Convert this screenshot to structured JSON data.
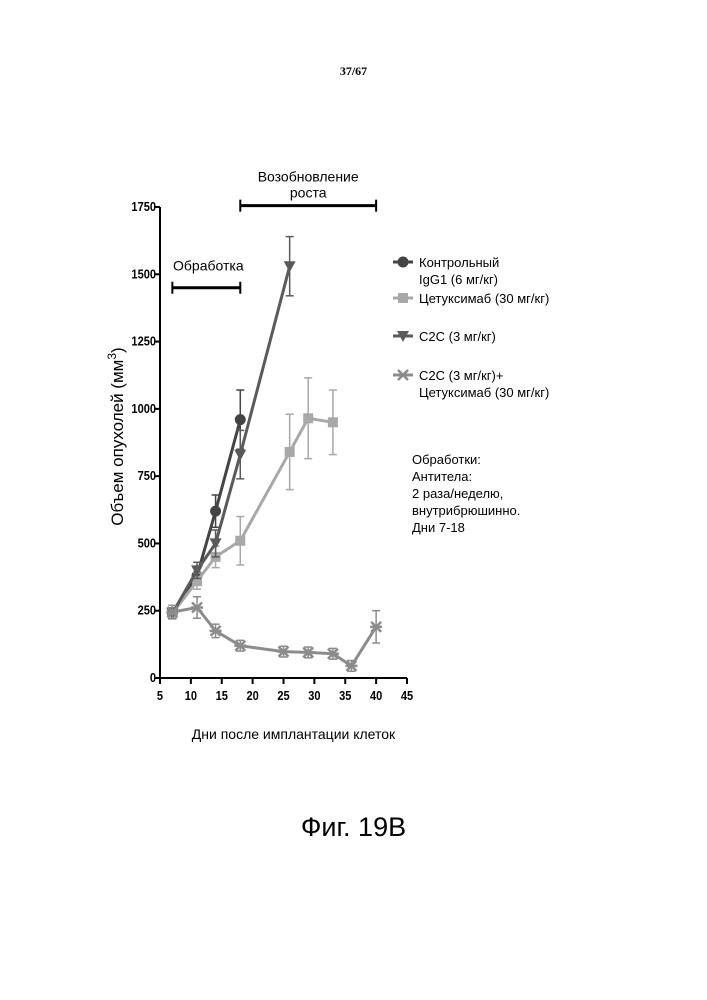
{
  "page": {
    "number": "37/67",
    "caption": "Фиг. 19B"
  },
  "chart_data": {
    "type": "line",
    "xlabel": "Дни после имплантации клеток",
    "ylabel": "Объем опухолей (мм",
    "ylabel_superscript": "3",
    "ylabel_close": ")",
    "xlim": [
      5,
      45
    ],
    "ylim": [
      0,
      1750
    ],
    "xticks": [
      5,
      10,
      15,
      20,
      25,
      30,
      35,
      40,
      45
    ],
    "yticks": [
      0,
      250,
      500,
      750,
      1000,
      1250,
      1500,
      1750
    ],
    "grid": false,
    "legend_position": "right",
    "annotations": {
      "treatment": {
        "label": "Обработка",
        "x_start": 7,
        "x_end": 18,
        "y": 1450
      },
      "regrowth": {
        "label_line1": "Возобновление",
        "label_line2": "роста",
        "x_start": 18,
        "x_end": 40,
        "y": 1755
      },
      "notes": [
        "Обработки:",
        "Антитела:",
        "2 раза/неделю,",
        "внутрибрюшинно.",
        "Дни 7-18"
      ]
    },
    "series": [
      {
        "name_lines": [
          "Контрольный",
          "IgG1 (6 мг/кг)"
        ],
        "color": "#444444",
        "marker": "circle",
        "x": [
          7,
          11,
          14,
          18
        ],
        "y": [
          240,
          380,
          620,
          960
        ],
        "err": [
          20,
          30,
          60,
          110
        ]
      },
      {
        "name_lines": [
          "Цетуксимаб (30 мг/кг)"
        ],
        "color": "#a8a8a8",
        "marker": "square",
        "x": [
          7,
          11,
          14,
          18,
          26,
          29,
          33
        ],
        "y": [
          240,
          360,
          450,
          510,
          840,
          965,
          950
        ],
        "err": [
          20,
          30,
          40,
          90,
          140,
          150,
          120
        ]
      },
      {
        "name_lines": [
          "C2C (3 мг/кг)"
        ],
        "color": "#5a5a5a",
        "marker": "triangle-down",
        "x": [
          7,
          11,
          14,
          18,
          26
        ],
        "y": [
          240,
          400,
          500,
          830,
          1530
        ],
        "err": [
          20,
          30,
          50,
          90,
          110
        ]
      },
      {
        "name_lines": [
          "C2C (3 мг/кг)+",
          "Цетуксимаб (30 мг/кг)"
        ],
        "color": "#8c8c8c",
        "marker": "star",
        "x": [
          7,
          11,
          14,
          18,
          25,
          29,
          33,
          36,
          40
        ],
        "y": [
          245,
          262,
          175,
          120,
          98,
          95,
          90,
          45,
          190
        ],
        "err": [
          25,
          40,
          25,
          20,
          20,
          20,
          20,
          20,
          60
        ]
      }
    ]
  }
}
